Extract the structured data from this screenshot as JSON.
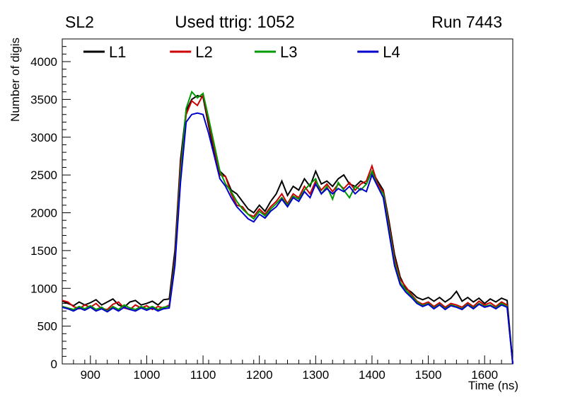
{
  "header": {
    "left": "SL2",
    "center": "Used ttrig: 1052",
    "right": "Run 7443"
  },
  "chart_data": {
    "type": "line",
    "title": "Used ttrig: 1052",
    "xlabel": "Time (ns)",
    "ylabel": "Number of digis",
    "xlim": [
      850,
      1650
    ],
    "ylim": [
      0,
      4300
    ],
    "x_ticks": [
      900,
      1000,
      1100,
      1200,
      1300,
      1400,
      1500,
      1600
    ],
    "y_ticks": [
      0,
      500,
      1000,
      1500,
      2000,
      2500,
      3000,
      3500,
      4000
    ],
    "grid": false,
    "legend_position": "top-inside-horizontal",
    "x": [
      850,
      860,
      870,
      880,
      890,
      900,
      910,
      920,
      930,
      940,
      950,
      960,
      970,
      980,
      990,
      1000,
      1010,
      1020,
      1030,
      1040,
      1050,
      1060,
      1070,
      1080,
      1090,
      1100,
      1110,
      1120,
      1130,
      1140,
      1150,
      1160,
      1170,
      1180,
      1190,
      1200,
      1210,
      1220,
      1230,
      1240,
      1250,
      1260,
      1270,
      1280,
      1290,
      1300,
      1310,
      1320,
      1330,
      1340,
      1350,
      1360,
      1370,
      1380,
      1390,
      1400,
      1410,
      1420,
      1430,
      1440,
      1450,
      1460,
      1470,
      1480,
      1490,
      1500,
      1510,
      1520,
      1530,
      1540,
      1550,
      1560,
      1570,
      1580,
      1590,
      1600,
      1610,
      1620,
      1630,
      1640,
      1650
    ],
    "series": [
      {
        "name": "L1",
        "color": "#000000",
        "values": [
          830,
          800,
          770,
          820,
          780,
          810,
          850,
          780,
          820,
          860,
          780,
          750,
          820,
          840,
          780,
          800,
          830,
          780,
          850,
          860,
          1500,
          2700,
          3350,
          3500,
          3550,
          3530,
          3150,
          2800,
          2550,
          2480,
          2300,
          2250,
          2150,
          2050,
          2000,
          2100,
          2020,
          2150,
          2250,
          2420,
          2230,
          2350,
          2300,
          2450,
          2350,
          2550,
          2380,
          2420,
          2350,
          2450,
          2500,
          2380,
          2350,
          2420,
          2380,
          2550,
          2420,
          2300,
          1900,
          1450,
          1150,
          1000,
          950,
          880,
          850,
          880,
          830,
          880,
          820,
          870,
          960,
          830,
          880,
          820,
          870,
          800,
          860,
          820,
          870,
          840,
          0
        ]
      },
      {
        "name": "L2",
        "color": "#cc0000",
        "values": [
          840,
          820,
          760,
          730,
          780,
          750,
          800,
          730,
          720,
          790,
          820,
          740,
          720,
          780,
          740,
          770,
          720,
          760,
          740,
          780,
          1400,
          2600,
          3300,
          3480,
          3420,
          3560,
          3200,
          2850,
          2500,
          2480,
          2250,
          2100,
          2080,
          1980,
          1950,
          2050,
          1980,
          2080,
          2150,
          2250,
          2120,
          2250,
          2200,
          2350,
          2250,
          2420,
          2300,
          2380,
          2280,
          2380,
          2320,
          2400,
          2300,
          2380,
          2420,
          2620,
          2380,
          2280,
          1850,
          1400,
          1120,
          1020,
          920,
          830,
          790,
          820,
          760,
          810,
          750,
          800,
          780,
          750,
          810,
          760,
          830,
          780,
          810,
          760,
          820,
          780,
          0
        ]
      },
      {
        "name": "L3",
        "color": "#009900",
        "values": [
          760,
          740,
          720,
          760,
          730,
          770,
          720,
          750,
          700,
          760,
          720,
          780,
          740,
          720,
          760,
          730,
          760,
          720,
          750,
          760,
          1350,
          2500,
          3380,
          3600,
          3520,
          3580,
          3250,
          2900,
          2550,
          2380,
          2280,
          2150,
          2050,
          1980,
          1920,
          2020,
          1960,
          2050,
          2120,
          2200,
          2100,
          2220,
          2180,
          2300,
          2380,
          2450,
          2250,
          2350,
          2180,
          2400,
          2300,
          2200,
          2350,
          2300,
          2380,
          2550,
          2350,
          2250,
          1800,
          1350,
          1080,
          980,
          900,
          820,
          770,
          800,
          740,
          790,
          730,
          780,
          760,
          730,
          790,
          740,
          800,
          760,
          780,
          740,
          800,
          760,
          0
        ]
      },
      {
        "name": "L4",
        "color": "#0000cc",
        "values": [
          750,
          730,
          700,
          740,
          710,
          750,
          700,
          730,
          690,
          740,
          700,
          750,
          720,
          700,
          740,
          710,
          740,
          700,
          730,
          740,
          1300,
          2400,
          3200,
          3300,
          3320,
          3300,
          3050,
          2750,
          2450,
          2350,
          2200,
          2080,
          2000,
          1920,
          1880,
          1980,
          1930,
          2020,
          2080,
          2180,
          2080,
          2200,
          2150,
          2280,
          2200,
          2380,
          2250,
          2320,
          2250,
          2320,
          2280,
          2350,
          2250,
          2320,
          2280,
          2500,
          2350,
          2200,
          1750,
          1300,
          1050,
          950,
          880,
          800,
          760,
          790,
          730,
          780,
          720,
          770,
          750,
          720,
          780,
          730,
          790,
          750,
          770,
          730,
          780,
          750,
          0
        ]
      }
    ]
  }
}
